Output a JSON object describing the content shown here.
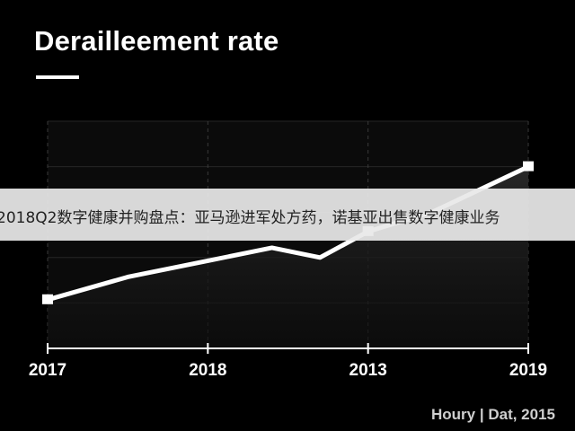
{
  "chart_data": {
    "type": "line",
    "title": "Derailleement rate",
    "x_tick_labels": [
      "2017",
      "2018",
      "2013",
      "2019"
    ],
    "series": [
      {
        "x": [
          0,
          0.5,
          1,
          1.4,
          1.7,
          2,
          2.4,
          3
        ],
        "values": [
          15,
          22,
          27,
          31,
          28,
          36,
          42,
          56
        ]
      }
    ],
    "ylim": [
      0,
      70
    ],
    "grid": true,
    "markers": "square at endpoints and at 2013",
    "line_color": "#ffffff"
  },
  "overlay_banner": "2018Q2数字健康并购盘点：亚马逊进军处方药，诺基亚出售数字健康业务",
  "source": "Houry | Dat, 2015"
}
